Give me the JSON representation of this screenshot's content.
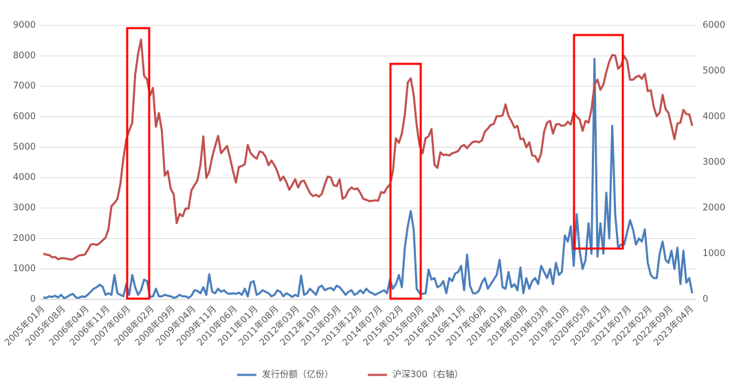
{
  "chart_data": {
    "type": "line",
    "categories": [
      "2005年01月",
      null,
      null,
      null,
      null,
      null,
      null,
      "2005年08月",
      null,
      null,
      null,
      null,
      null,
      null,
      null,
      "2006年04月",
      null,
      null,
      null,
      null,
      null,
      null,
      "2006年11月",
      null,
      null,
      null,
      null,
      null,
      null,
      "2007年06月",
      null,
      null,
      null,
      null,
      null,
      null,
      null,
      "2008年02月",
      null,
      null,
      null,
      null,
      null,
      null,
      "2008年09月",
      null,
      null,
      null,
      null,
      null,
      null,
      "2009年04月",
      null,
      null,
      null,
      null,
      null,
      null,
      "2009年11月",
      null,
      null,
      null,
      null,
      null,
      null,
      "2010年06月",
      null,
      null,
      null,
      null,
      null,
      null,
      "2011年01月",
      null,
      null,
      null,
      null,
      null,
      null,
      "2011年08月",
      null,
      null,
      null,
      null,
      null,
      null,
      "2012年03月",
      null,
      null,
      null,
      null,
      null,
      null,
      "2012年10月",
      null,
      null,
      null,
      null,
      null,
      null,
      "2013年05月",
      null,
      null,
      null,
      null,
      null,
      null,
      "2013年12月",
      null,
      null,
      null,
      null,
      null,
      null,
      "2014年07月",
      null,
      null,
      null,
      null,
      null,
      null,
      "2015年02月",
      null,
      null,
      null,
      null,
      null,
      null,
      "2015年09月",
      null,
      null,
      null,
      null,
      null,
      null,
      "2016年04月",
      null,
      null,
      null,
      null,
      null,
      null,
      "2016年11月",
      null,
      null,
      null,
      null,
      null,
      null,
      "2017年06月",
      null,
      null,
      null,
      null,
      null,
      null,
      "2018年01月",
      null,
      null,
      null,
      null,
      null,
      null,
      "2018年08月",
      null,
      null,
      null,
      null,
      null,
      null,
      "2019年03月",
      null,
      null,
      null,
      null,
      null,
      null,
      "2019年10月",
      null,
      null,
      null,
      null,
      null,
      null,
      "2020年05月",
      null,
      null,
      null,
      null,
      null,
      null,
      "2020年12月",
      null,
      null,
      null,
      null,
      null,
      null,
      "2021年07月",
      null,
      null,
      null,
      null,
      null,
      null,
      "2022年02月",
      null,
      null,
      null,
      null,
      null,
      null,
      "2022年09月",
      null,
      null,
      null,
      null,
      null,
      null,
      "2023年04月"
    ],
    "series": [
      {
        "name": "发行份额（亿份）",
        "color": "#4a7ebb",
        "values": [
          60,
          50,
          100,
          80,
          120,
          60,
          150,
          40,
          80,
          140,
          180,
          60,
          50,
          100,
          80,
          150,
          250,
          350,
          400,
          480,
          420,
          150,
          200,
          150,
          800,
          200,
          150,
          100,
          500,
          150,
          800,
          400,
          150,
          300,
          650,
          600,
          80,
          100,
          350,
          100,
          100,
          150,
          120,
          100,
          50,
          80,
          150,
          100,
          100,
          50,
          120,
          300,
          280,
          200,
          400,
          150,
          820,
          250,
          200,
          350,
          250,
          300,
          200,
          180,
          200,
          180,
          220,
          150,
          350,
          100,
          550,
          600,
          150,
          200,
          300,
          250,
          200,
          100,
          150,
          300,
          250,
          100,
          200,
          150,
          80,
          150,
          100,
          780,
          150,
          200,
          350,
          250,
          150,
          400,
          450,
          300,
          350,
          380,
          300,
          450,
          400,
          280,
          150,
          250,
          300,
          150,
          200,
          300,
          200,
          350,
          250,
          200,
          150,
          200,
          250,
          300,
          200,
          650,
          350,
          500,
          800,
          400,
          1700,
          2400,
          2900,
          2300,
          350,
          200,
          180,
          200,
          980,
          650,
          700,
          400,
          450,
          600,
          200,
          700,
          600,
          850,
          900,
          1100,
          300,
          1470,
          450,
          200,
          200,
          280,
          550,
          700,
          350,
          500,
          650,
          800,
          1300,
          400,
          350,
          900,
          400,
          500,
          300,
          1050,
          200,
          700,
          350,
          600,
          700,
          500,
          1100,
          900,
          700,
          1000,
          500,
          1200,
          800,
          900,
          2100,
          1900,
          2400,
          1100,
          2800,
          1600,
          1000,
          1300,
          2500,
          1500,
          7900,
          1400,
          2500,
          1500,
          3500,
          2000,
          5700,
          2800,
          1700,
          1800,
          1800,
          2200,
          2600,
          2300,
          1800,
          2000,
          1900,
          2300,
          1200,
          800,
          700,
          700,
          1500,
          1900,
          1300,
          1200,
          1600,
          1000,
          1700,
          500,
          1600,
          550,
          700,
          200
        ]
      },
      {
        "name": "沪深300（右轴）",
        "color": "#c0504d",
        "axis": "y2",
        "values": [
          1000,
          980,
          970,
          920,
          930,
          880,
          900,
          900,
          890,
          870,
          880,
          920,
          960,
          970,
          980,
          1080,
          1200,
          1210,
          1190,
          1230,
          1290,
          1350,
          1540,
          2040,
          2110,
          2200,
          2530,
          3080,
          3500,
          3700,
          3860,
          4910,
          5380,
          5690,
          4900,
          4820,
          4460,
          4630,
          3780,
          4080,
          3700,
          2710,
          2810,
          2420,
          2300,
          1670,
          1870,
          1820,
          1990,
          1990,
          2390,
          2500,
          2600,
          2940,
          3570,
          2660,
          2800,
          3120,
          3360,
          3580,
          3200,
          3280,
          3360,
          3100,
          2810,
          2560,
          2900,
          2920,
          2960,
          3380,
          3200,
          3130,
          3080,
          3240,
          3220,
          3130,
          2940,
          3040,
          2940,
          2800,
          2600,
          2690,
          2570,
          2400,
          2510,
          2630,
          2450,
          2580,
          2600,
          2460,
          2330,
          2260,
          2290,
          2250,
          2310,
          2520,
          2690,
          2670,
          2500,
          2480,
          2630,
          2200,
          2250,
          2390,
          2450,
          2410,
          2430,
          2330,
          2200,
          2180,
          2150,
          2160,
          2170,
          2160,
          2350,
          2330,
          2450,
          2510,
          2810,
          3530,
          3430,
          3630,
          4050,
          4750,
          4840,
          4470,
          3820,
          3370,
          3200,
          3530,
          3570,
          3730,
          2950,
          2880,
          3220,
          3160,
          3170,
          3150,
          3200,
          3220,
          3250,
          3350,
          3380,
          3310,
          3390,
          3450,
          3460,
          3440,
          3480,
          3670,
          3740,
          3820,
          3840,
          4010,
          4010,
          4030,
          4270,
          4020,
          3900,
          3760,
          3800,
          3510,
          3520,
          3330,
          3440,
          3150,
          3140,
          3010,
          3200,
          3670,
          3870,
          3910,
          3630,
          3830,
          3840,
          3800,
          3810,
          3890,
          3830,
          4100,
          4000,
          3940,
          3690,
          3910,
          3870,
          4160,
          4700,
          4810,
          4590,
          4700,
          4980,
          5210,
          5350,
          5340,
          5050,
          5120,
          5330,
          5220,
          4810,
          4810,
          4870,
          4900,
          4830,
          4940,
          4560,
          4580,
          4220,
          4010,
          4090,
          4480,
          4170,
          4080,
          3800,
          3510,
          3850,
          3870,
          4150,
          4060,
          4050,
          3800
        ]
      }
    ],
    "ylim": [
      0,
      9000
    ],
    "yticks": [
      0,
      1000,
      2000,
      3000,
      4000,
      5000,
      6000,
      7000,
      8000,
      9000
    ],
    "y2lim": [
      0,
      6000
    ],
    "y2ticks": [
      0,
      1000,
      2000,
      3000,
      4000,
      5000,
      6000
    ],
    "grid": true,
    "legend": "bottom"
  }
}
